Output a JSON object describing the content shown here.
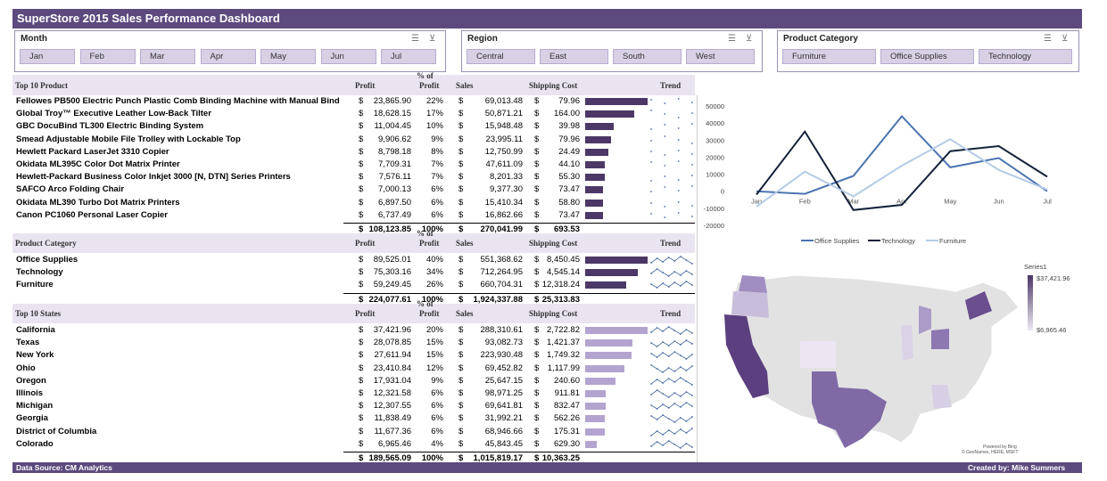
{
  "title": "SuperStore 2015 Sales Performance Dashboard",
  "slicers": {
    "month": {
      "title": "Month",
      "items": [
        "Jan",
        "Feb",
        "Mar",
        "Apr",
        "May",
        "Jun",
        "Jul"
      ]
    },
    "region": {
      "title": "Region",
      "items": [
        "Central",
        "East",
        "South",
        "West"
      ]
    },
    "category": {
      "title": "Product Category",
      "items": [
        "Furniture",
        "Office Supplies",
        "Technology"
      ]
    }
  },
  "headers": {
    "pct": "% of",
    "profit": "Profit",
    "sales": "Sales",
    "shipping": "Shipping Cost",
    "trend": "Trend",
    "product": "Top 10 Product",
    "category": "Product Category",
    "states": "Top 10 States"
  },
  "products": [
    {
      "name": "Fellowes PB500 Electric Punch Plastic Comb Binding Machine with Manual Bind",
      "profit": "23,865.90",
      "pct": "22%",
      "sales": "69,013.48",
      "ship": "79.96",
      "ratio": 1.0
    },
    {
      "name": "Global Troy™ Executive Leather Low-Back Tilter",
      "profit": "18,628.15",
      "pct": "17%",
      "sales": "50,871.21",
      "ship": "164.00",
      "ratio": 0.78
    },
    {
      "name": "GBC DocuBind TL300 Electric Binding System",
      "profit": "11,004.45",
      "pct": "10%",
      "sales": "15,948.48",
      "ship": "39.98",
      "ratio": 0.46
    },
    {
      "name": "Smead Adjustable Mobile File Trolley with Lockable Top",
      "profit": "9,906.62",
      "pct": "9%",
      "sales": "23,995.11",
      "ship": "79.96",
      "ratio": 0.42
    },
    {
      "name": "Hewlett Packard LaserJet 3310 Copier",
      "profit": "8,798.18",
      "pct": "8%",
      "sales": "12,750.99",
      "ship": "24.49",
      "ratio": 0.37
    },
    {
      "name": "Okidata ML395C Color Dot Matrix Printer",
      "profit": "7,709.31",
      "pct": "7%",
      "sales": "47,611.09",
      "ship": "44.10",
      "ratio": 0.32
    },
    {
      "name": "Hewlett-Packard Business Color Inkjet 3000 [N, DTN] Series Printers",
      "profit": "7,576.11",
      "pct": "7%",
      "sales": "8,201.33",
      "ship": "55.30",
      "ratio": 0.32
    },
    {
      "name": "SAFCO Arco Folding Chair",
      "profit": "7,000.13",
      "pct": "6%",
      "sales": "9,377.30",
      "ship": "73.47",
      "ratio": 0.29
    },
    {
      "name": "Okidata ML390 Turbo Dot Matrix Printers",
      "profit": "6,897.50",
      "pct": "6%",
      "sales": "15,410.34",
      "ship": "58.80",
      "ratio": 0.29
    },
    {
      "name": "Canon PC1060 Personal Laser Copier",
      "profit": "6,737.49",
      "pct": "6%",
      "sales": "16,862.66",
      "ship": "73.47",
      "ratio": 0.28
    }
  ],
  "product_totals": {
    "profit": "108,123.85",
    "pct": "100%",
    "sales": "270,041.99",
    "ship": "693.53"
  },
  "categories": [
    {
      "name": "Office Supplies",
      "profit": "89,525.01",
      "pct": "40%",
      "sales": "551,368.62",
      "ship": "8,450.45",
      "ratio": 1.0
    },
    {
      "name": "Technology",
      "profit": "75,303.16",
      "pct": "34%",
      "sales": "712,264.95",
      "ship": "4,545.14",
      "ratio": 0.84
    },
    {
      "name": "Furniture",
      "profit": "59,249.45",
      "pct": "26%",
      "sales": "660,704.31",
      "ship": "12,318.24",
      "ratio": 0.66
    }
  ],
  "category_totals": {
    "profit": "224,077.61",
    "pct": "100%",
    "sales": "1,924,337.88",
    "ship": "25,313.83"
  },
  "states": [
    {
      "name": "California",
      "profit": "37,421.96",
      "pct": "20%",
      "sales": "288,310.61",
      "ship": "2,722.82",
      "ratio": 1.0
    },
    {
      "name": "Texas",
      "profit": "28,078.85",
      "pct": "15%",
      "sales": "93,082.73",
      "ship": "1,421.37",
      "ratio": 0.75
    },
    {
      "name": "New York",
      "profit": "27,611.94",
      "pct": "15%",
      "sales": "223,930.48",
      "ship": "1,749.32",
      "ratio": 0.74
    },
    {
      "name": "Ohio",
      "profit": "23,410.84",
      "pct": "12%",
      "sales": "69,452.82",
      "ship": "1,117.99",
      "ratio": 0.63
    },
    {
      "name": "Oregon",
      "profit": "17,931.04",
      "pct": "9%",
      "sales": "25,647.15",
      "ship": "240.60",
      "ratio": 0.48
    },
    {
      "name": "Illinois",
      "profit": "12,321.58",
      "pct": "6%",
      "sales": "98,971.25",
      "ship": "911.81",
      "ratio": 0.33
    },
    {
      "name": "Michigan",
      "profit": "12,307.55",
      "pct": "6%",
      "sales": "69,641.81",
      "ship": "832.47",
      "ratio": 0.33
    },
    {
      "name": "Georgia",
      "profit": "11,838.49",
      "pct": "6%",
      "sales": "31,992.21",
      "ship": "562.26",
      "ratio": 0.32
    },
    {
      "name": "District of Columbia",
      "profit": "11,677.36",
      "pct": "6%",
      "sales": "68,946.66",
      "ship": "175.31",
      "ratio": 0.31
    },
    {
      "name": "Colorado",
      "profit": "6,965.46",
      "pct": "4%",
      "sales": "45,843.45",
      "ship": "629.30",
      "ratio": 0.19
    }
  ],
  "state_totals": {
    "profit": "189,565.09",
    "pct": "100%",
    "sales": "1,015,819.17",
    "ship": "10,363.25"
  },
  "chart_data": {
    "type": "line",
    "categories": [
      "Jan",
      "Feb",
      "Mar",
      "Apr",
      "May",
      "Jun",
      "Jul"
    ],
    "ylim": [
      -20000,
      50000
    ],
    "yticks": [
      "50000",
      "40000",
      "30000",
      "20000",
      "10000",
      "0",
      "-10000",
      "-20000"
    ],
    "series": [
      {
        "name": "Office Supplies",
        "color": "#4a74b0",
        "values": [
          0,
          -1500,
          9000,
          44000,
          14000,
          19500,
          0
        ]
      },
      {
        "name": "Technology",
        "color": "#14213a",
        "values": [
          -2000,
          35000,
          -11000,
          -8000,
          23500,
          26500,
          8500
        ]
      },
      {
        "name": "Furniture",
        "color": "#b4cbe6",
        "values": [
          -9000,
          11500,
          -3000,
          15000,
          30500,
          12500,
          1000
        ]
      }
    ]
  },
  "map": {
    "series": "Series1",
    "max": "$37,421.96",
    "min": "$6,965.46",
    "credit1": "Powered by Bing",
    "credit2": "© GeoNames, HERE, MSFT"
  },
  "footer": {
    "source": "Data Source: CM Analytics",
    "author": "Created by: Mike Summers"
  },
  "colors": {
    "accent": "#5c4a7e",
    "bar_dark": "#4b3866",
    "bar_light": "#b3a4cf"
  }
}
